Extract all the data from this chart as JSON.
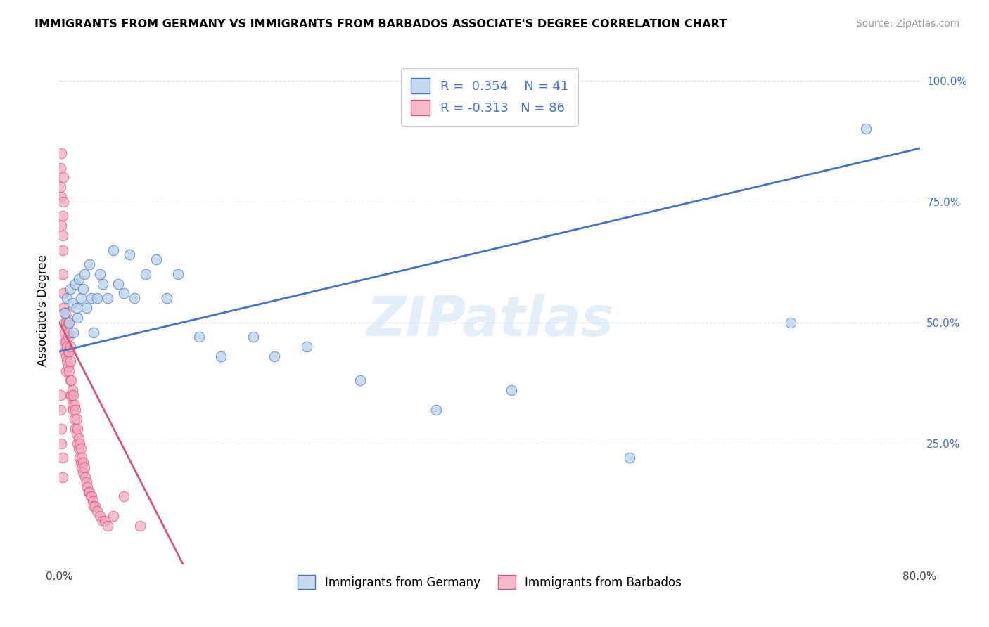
{
  "title": "IMMIGRANTS FROM GERMANY VS IMMIGRANTS FROM BARBADOS ASSOCIATE'S DEGREE CORRELATION CHART",
  "source": "Source: ZipAtlas.com",
  "xlabel_legend1": "Immigrants from Germany",
  "xlabel_legend2": "Immigrants from Barbados",
  "ylabel": "Associate's Degree",
  "r1": 0.354,
  "n1": 41,
  "r2": -0.313,
  "n2": 86,
  "color1": "#b8d0ea",
  "color2": "#f4a8be",
  "line_color1": "#4472c4",
  "line_color2": "#d9547a",
  "xmin": 0.0,
  "xmax": 0.8,
  "ymin": 0.0,
  "ymax": 1.05,
  "xtick_positions": [
    0.0,
    0.8
  ],
  "xtick_labels": [
    "0.0%",
    "80.0%"
  ],
  "ytick_positions": [
    0.25,
    0.5,
    0.75,
    1.0
  ],
  "ytick_labels": [
    "25.0%",
    "50.0%",
    "75.0%",
    "100.0%"
  ],
  "germany_x": [
    0.005,
    0.007,
    0.009,
    0.01,
    0.012,
    0.013,
    0.015,
    0.016,
    0.017,
    0.018,
    0.02,
    0.022,
    0.023,
    0.025,
    0.028,
    0.03,
    0.032,
    0.035,
    0.038,
    0.04,
    0.045,
    0.05,
    0.055,
    0.06,
    0.065,
    0.07,
    0.08,
    0.09,
    0.1,
    0.11,
    0.13,
    0.15,
    0.18,
    0.2,
    0.23,
    0.28,
    0.35,
    0.42,
    0.53,
    0.68,
    0.75
  ],
  "germany_y": [
    0.52,
    0.55,
    0.5,
    0.57,
    0.54,
    0.48,
    0.58,
    0.53,
    0.51,
    0.59,
    0.55,
    0.57,
    0.6,
    0.53,
    0.62,
    0.55,
    0.48,
    0.55,
    0.6,
    0.58,
    0.55,
    0.65,
    0.58,
    0.56,
    0.64,
    0.55,
    0.6,
    0.63,
    0.55,
    0.6,
    0.47,
    0.43,
    0.47,
    0.43,
    0.45,
    0.38,
    0.32,
    0.36,
    0.22,
    0.5,
    0.9
  ],
  "barbados_x": [
    0.001,
    0.001,
    0.002,
    0.002,
    0.002,
    0.003,
    0.003,
    0.003,
    0.003,
    0.004,
    0.004,
    0.004,
    0.004,
    0.005,
    0.005,
    0.005,
    0.005,
    0.005,
    0.006,
    0.006,
    0.006,
    0.006,
    0.007,
    0.007,
    0.007,
    0.007,
    0.008,
    0.008,
    0.008,
    0.008,
    0.009,
    0.009,
    0.009,
    0.01,
    0.01,
    0.01,
    0.01,
    0.011,
    0.011,
    0.012,
    0.012,
    0.013,
    0.013,
    0.014,
    0.014,
    0.015,
    0.015,
    0.016,
    0.016,
    0.017,
    0.017,
    0.018,
    0.018,
    0.019,
    0.019,
    0.02,
    0.02,
    0.021,
    0.021,
    0.022,
    0.022,
    0.023,
    0.024,
    0.025,
    0.026,
    0.027,
    0.028,
    0.029,
    0.03,
    0.031,
    0.032,
    0.033,
    0.035,
    0.038,
    0.04,
    0.042,
    0.045,
    0.05,
    0.06,
    0.075,
    0.001,
    0.001,
    0.002,
    0.002,
    0.003,
    0.003
  ],
  "barbados_y": [
    0.82,
    0.78,
    0.76,
    0.7,
    0.85,
    0.72,
    0.68,
    0.65,
    0.6,
    0.56,
    0.53,
    0.75,
    0.8,
    0.5,
    0.52,
    0.48,
    0.46,
    0.44,
    0.5,
    0.46,
    0.43,
    0.4,
    0.52,
    0.49,
    0.45,
    0.42,
    0.5,
    0.47,
    0.44,
    0.41,
    0.48,
    0.44,
    0.4,
    0.45,
    0.42,
    0.38,
    0.35,
    0.38,
    0.35,
    0.36,
    0.33,
    0.35,
    0.32,
    0.33,
    0.3,
    0.32,
    0.28,
    0.3,
    0.27,
    0.28,
    0.25,
    0.26,
    0.24,
    0.25,
    0.22,
    0.24,
    0.21,
    0.22,
    0.2,
    0.21,
    0.19,
    0.2,
    0.18,
    0.17,
    0.16,
    0.15,
    0.15,
    0.14,
    0.14,
    0.13,
    0.12,
    0.12,
    0.11,
    0.1,
    0.09,
    0.09,
    0.08,
    0.1,
    0.14,
    0.08,
    0.35,
    0.32,
    0.28,
    0.25,
    0.22,
    0.18
  ],
  "watermark": "ZIPatlas",
  "legend_box_color1": "#c5d9f1",
  "legend_box_color2": "#f4b8c8",
  "legend_text_color": "#4472c4",
  "g_line_x0": 0.0,
  "g_line_x1": 0.8,
  "g_line_y0": 0.44,
  "g_line_y1": 0.86,
  "b_line_x0": 0.0,
  "b_line_x1": 0.115,
  "b_line_y0": 0.5,
  "b_line_y1": 0.0
}
